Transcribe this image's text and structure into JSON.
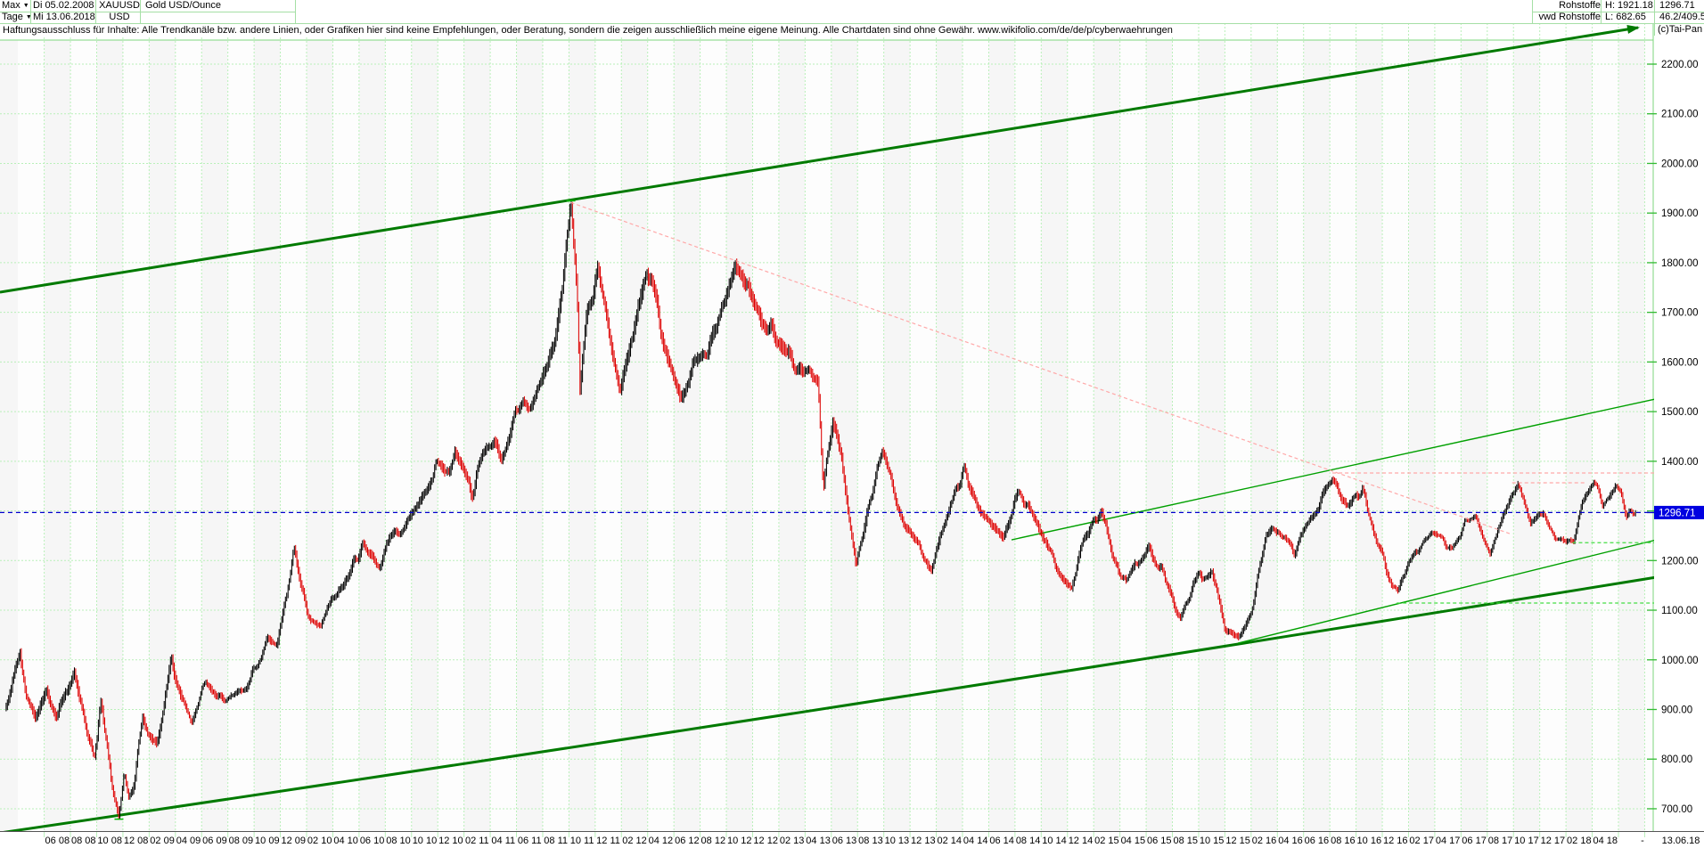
{
  "header": {
    "range_selector": "Max",
    "period_selector": "Tage",
    "date_from": "Di 05.02.2008",
    "date_to": "Mi 13.06.2018",
    "symbol": "XAUUSD",
    "currency": "USD",
    "instrument": "Gold USD/Ounce",
    "feed_line1": "Rohstoffe",
    "feed_line2": "vwd Rohstoffe",
    "high_label": "H: 1921.18",
    "low_label": "L: 682.65",
    "last_price": "1296.71",
    "stats": "46.2/409.5",
    "copyright": "(c)Tai-Pan"
  },
  "disclaimer": "Haftungsausschluss für Inhalte: Alle Trendkanäle bzw. andere Linien, oder Grafiken hier sind keine Empfehlungen, oder Beratung, sondern die zeigen ausschließlich meine eigene Meinung. Alle Chartdaten sind ohne Gewähr.  www.wikifolio.com/de/de/p/cyberwaehrungen",
  "price_tag": "1296.71",
  "axis": {
    "end_separator": "-",
    "end_date_label": "13.06.18"
  },
  "colors": {
    "grid": "#b9f0b9",
    "plot_border": "#7ed87e",
    "axis_tick": "#33bb33",
    "band": "#f6f6f6",
    "band_alt": "#fdfdfd",
    "trend_dark": "#007a00",
    "trend_mid": "#00a000",
    "dashed_green": "#44dd44",
    "pink": "#ffa8a8",
    "blue": "#0000cc",
    "tag_bg": "#0000e0",
    "tag_text": "#ffffff",
    "candle_up": "#000000",
    "candle_down": "#dd0000",
    "hl_marker": "#00bb00",
    "bottom_border": "#555555"
  },
  "chart_data": {
    "type": "ohlc-daily",
    "title": "Gold USD/Ounce",
    "symbol": "XAUUSD",
    "date_start": "05.02.2008",
    "date_end": "13.06.2018",
    "high": 1921.18,
    "low": 682.65,
    "last": 1296.71,
    "ylim": [
      650,
      2260
    ],
    "y_axis_step": 100,
    "grid": true,
    "y_labels": [
      "2200.00",
      "2100.00",
      "2000.00",
      "1900.00",
      "1800.00",
      "1700.00",
      "1600.00",
      "1500.00",
      "1400.00",
      "1300.00",
      "1200.00",
      "1100.00",
      "1000.00",
      "900.00",
      "800.00",
      "700.00"
    ],
    "x_labels": [
      "06 08",
      "08 08",
      "10 08",
      "12 08",
      "02 09",
      "04 09",
      "06 09",
      "08 09",
      "10 09",
      "12 09",
      "02 10",
      "04 10",
      "06 10",
      "08 10",
      "10 10",
      "12 10",
      "02 11",
      "04 11",
      "06 11",
      "08 11",
      "10 11",
      "12 11",
      "02 12",
      "04 12",
      "06 12",
      "08 12",
      "10 12",
      "12 12",
      "02 13",
      "04 13",
      "06 13",
      "08 13",
      "10 13",
      "12 13",
      "02 14",
      "04 14",
      "06 14",
      "08 14",
      "10 14",
      "12 14",
      "02 15",
      "04 15",
      "06 15",
      "08 15",
      "10 15",
      "12 15",
      "02 16",
      "04 16",
      "06 16",
      "08 16",
      "10 16",
      "12 16",
      "02 17",
      "04 17",
      "06 17",
      "08 17",
      "10 17",
      "12 17",
      "02 18",
      "04 18"
    ],
    "anchors_months_price": [
      [
        0.1,
        905
      ],
      [
        0.8,
        975
      ],
      [
        1.15,
        1008
      ],
      [
        1.6,
        930
      ],
      [
        2.3,
        886
      ],
      [
        3.2,
        932
      ],
      [
        4.0,
        886
      ],
      [
        4.6,
        930
      ],
      [
        5.3,
        976
      ],
      [
        6.2,
        862
      ],
      [
        6.8,
        792
      ],
      [
        7.3,
        906
      ],
      [
        7.8,
        832
      ],
      [
        8.2,
        742
      ],
      [
        8.7,
        683
      ],
      [
        9.1,
        772
      ],
      [
        9.45,
        716
      ],
      [
        9.9,
        756
      ],
      [
        10.5,
        878
      ],
      [
        10.9,
        842
      ],
      [
        11.6,
        816
      ],
      [
        12.2,
        905
      ],
      [
        12.7,
        996
      ],
      [
        13.3,
        940
      ],
      [
        14.2,
        876
      ],
      [
        15.3,
        956
      ],
      [
        16.1,
        926
      ],
      [
        16.8,
        912
      ],
      [
        17.6,
        940
      ],
      [
        18.4,
        952
      ],
      [
        19.3,
        996
      ],
      [
        20.0,
        1046
      ],
      [
        20.8,
        1036
      ],
      [
        21.5,
        1120
      ],
      [
        22.05,
        1216
      ],
      [
        22.6,
        1140
      ],
      [
        23.3,
        1086
      ],
      [
        24.1,
        1062
      ],
      [
        24.9,
        1112
      ],
      [
        25.8,
        1136
      ],
      [
        26.6,
        1200
      ],
      [
        27.3,
        1243
      ],
      [
        27.8,
        1216
      ],
      [
        28.6,
        1176
      ],
      [
        29.4,
        1246
      ],
      [
        30.3,
        1256
      ],
      [
        31.2,
        1300
      ],
      [
        32.1,
        1346
      ],
      [
        32.9,
        1386
      ],
      [
        33.6,
        1376
      ],
      [
        34.3,
        1420
      ],
      [
        34.9,
        1388
      ],
      [
        35.6,
        1332
      ],
      [
        36.4,
        1416
      ],
      [
        37.3,
        1436
      ],
      [
        38.1,
        1406
      ],
      [
        38.9,
        1500
      ],
      [
        39.5,
        1522
      ],
      [
        40.2,
        1502
      ],
      [
        41.0,
        1562
      ],
      [
        41.8,
        1612
      ],
      [
        42.5,
        1742
      ],
      [
        42.9,
        1862
      ],
      [
        43.15,
        1921.18
      ],
      [
        43.6,
        1756
      ],
      [
        43.85,
        1542
      ],
      [
        44.3,
        1682
      ],
      [
        45.2,
        1800
      ],
      [
        45.8,
        1712
      ],
      [
        46.9,
        1546
      ],
      [
        47.5,
        1622
      ],
      [
        48.9,
        1788
      ],
      [
        50.0,
        1680
      ],
      [
        51.5,
        1528
      ],
      [
        52.5,
        1600
      ],
      [
        53.5,
        1616
      ],
      [
        55.0,
        1740
      ],
      [
        56.0,
        1794
      ],
      [
        57.0,
        1720
      ],
      [
        58.5,
        1662
      ],
      [
        60.5,
        1576
      ],
      [
        61.3,
        1600
      ],
      [
        62.0,
        1560
      ],
      [
        62.4,
        1340
      ],
      [
        63.1,
        1462
      ],
      [
        63.8,
        1392
      ],
      [
        64.9,
        1182
      ],
      [
        66.0,
        1322
      ],
      [
        66.9,
        1418
      ],
      [
        68.0,
        1312
      ],
      [
        69.0,
        1252
      ],
      [
        70.6,
        1188
      ],
      [
        71.5,
        1252
      ],
      [
        73.1,
        1382
      ],
      [
        74.5,
        1292
      ],
      [
        76.1,
        1244
      ],
      [
        77.3,
        1338
      ],
      [
        78.5,
        1282
      ],
      [
        79.5,
        1216
      ],
      [
        81.3,
        1142
      ],
      [
        82.2,
        1232
      ],
      [
        83.6,
        1300
      ],
      [
        84.5,
        1200
      ],
      [
        85.5,
        1150
      ],
      [
        86.5,
        1206
      ],
      [
        87.3,
        1226
      ],
      [
        88.5,
        1166
      ],
      [
        89.6,
        1082
      ],
      [
        90.6,
        1162
      ],
      [
        92.0,
        1183
      ],
      [
        93.0,
        1066
      ],
      [
        94.1,
        1046
      ],
      [
        95.0,
        1092
      ],
      [
        96.1,
        1246
      ],
      [
        97.0,
        1272
      ],
      [
        98.3,
        1216
      ],
      [
        99.5,
        1292
      ],
      [
        100.3,
        1322
      ],
      [
        101.2,
        1374
      ],
      [
        102.3,
        1312
      ],
      [
        103.5,
        1342
      ],
      [
        104.4,
        1252
      ],
      [
        105.3,
        1182
      ],
      [
        106.15,
        1125
      ],
      [
        107.0,
        1192
      ],
      [
        108.6,
        1257
      ],
      [
        109.5,
        1241
      ],
      [
        110.3,
        1221
      ],
      [
        111.3,
        1271
      ],
      [
        112.1,
        1294
      ],
      [
        113.2,
        1211
      ],
      [
        114.2,
        1291
      ],
      [
        115.35,
        1355
      ],
      [
        116.3,
        1281
      ],
      [
        117.3,
        1301
      ],
      [
        118.2,
        1243
      ],
      [
        119.55,
        1238
      ],
      [
        120.3,
        1321
      ],
      [
        121.15,
        1362
      ],
      [
        121.8,
        1318
      ],
      [
        122.3,
        1331
      ],
      [
        122.8,
        1352
      ],
      [
        123.2,
        1338
      ],
      [
        123.6,
        1292
      ],
      [
        123.9,
        1303
      ],
      [
        124.15,
        1291
      ],
      [
        124.3,
        1296.71
      ]
    ],
    "overlays": [
      {
        "name": "upper-trend-channel",
        "kind": "line",
        "from": [
          -0.37,
          1740.6
        ],
        "to": [
          124.5,
          2273.6
        ],
        "color": "trend_dark",
        "width": 3,
        "arrow": true,
        "layer": "under"
      },
      {
        "name": "lower-trend-channel",
        "kind": "curve",
        "from": [
          -0.37,
          651.5
        ],
        "ctrl": [
          64.2,
          902.7
        ],
        "to": [
          125.9,
          1166.4
        ],
        "color": "trend_dark",
        "width": 3,
        "layer": "under"
      },
      {
        "name": "trendline-resistance-2014",
        "kind": "line",
        "from": [
          76.74,
          1241.8
        ],
        "to": [
          125.8,
          1525.3
        ],
        "color": "trend_mid",
        "width": 1.4,
        "layer": "under"
      },
      {
        "name": "trendline-support-2015",
        "kind": "line",
        "from": [
          94.0,
          1033.5
        ],
        "to": [
          125.9,
          1241.8
        ],
        "color": "trend_mid",
        "width": 1.4,
        "layer": "under"
      },
      {
        "name": "downtrend-from-peak",
        "kind": "line",
        "from": [
          43.15,
          1921.18
        ],
        "to": [
          114.9,
          1252.5
        ],
        "color": "pink",
        "width": 1.2,
        "dash": "4 3",
        "layer": "over"
      },
      {
        "name": "resistance-1376",
        "kind": "line",
        "from": [
          101.2,
          1376.4
        ],
        "to": [
          126.3,
          1376.4
        ],
        "color": "pink",
        "width": 1.2,
        "dash": "4 3",
        "layer": "over"
      },
      {
        "name": "resistance-1357",
        "kind": "line",
        "from": [
          114.9,
          1356.6
        ],
        "to": [
          120.6,
          1356.6
        ],
        "color": "pink",
        "width": 1.2,
        "dash": "4 3",
        "layer": "over"
      },
      {
        "name": "support-1236",
        "kind": "line",
        "from": [
          119.5,
          1236.0
        ],
        "to": [
          126.4,
          1236.0
        ],
        "color": "dashed_green",
        "width": 1.2,
        "dash": "4 3",
        "layer": "over"
      },
      {
        "name": "support-1114",
        "kind": "line",
        "from": [
          106.1,
          1114.4
        ],
        "to": [
          126.4,
          1114.4
        ],
        "color": "dashed_green",
        "width": 1.2,
        "dash": "4 3",
        "layer": "over"
      },
      {
        "name": "current-price-line",
        "kind": "line",
        "from": [
          -0.37,
          1296.71
        ],
        "to": [
          125.6,
          1296.71
        ],
        "color": "blue",
        "width": 1.3,
        "dash": "5 4",
        "layer": "over"
      }
    ]
  }
}
